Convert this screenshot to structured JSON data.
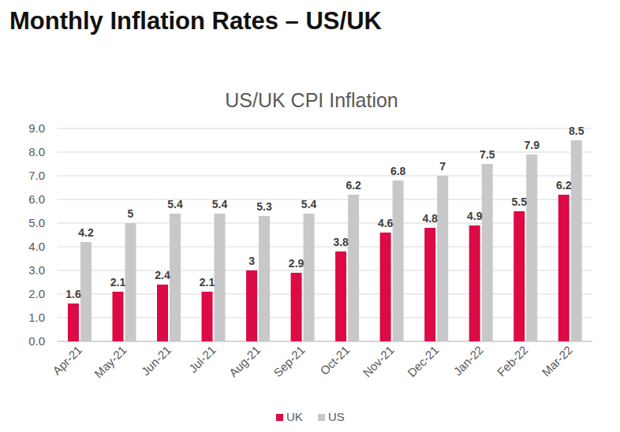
{
  "header": {
    "title": "Monthly Inflation Rates – US/UK"
  },
  "chart_data": {
    "type": "bar",
    "title": "US/UK CPI Inflation",
    "categories": [
      "Apr-21",
      "May-21",
      "Jun-21",
      "Jul-21",
      "Aug-21",
      "Sep-21",
      "Oct-21",
      "Nov-21",
      "Dec-21",
      "Jan-22",
      "Feb-22",
      "Mar-22"
    ],
    "series": [
      {
        "name": "UK",
        "color": "#dc0a45",
        "values": [
          1.6,
          2.1,
          2.4,
          2.1,
          3,
          2.9,
          3.8,
          4.6,
          4.8,
          4.9,
          5.5,
          6.2
        ]
      },
      {
        "name": "US",
        "color": "#c8c8c8",
        "values": [
          4.2,
          5,
          5.4,
          5.4,
          5.3,
          5.4,
          6.2,
          6.8,
          7,
          7.5,
          7.9,
          8.5
        ]
      }
    ],
    "ylim": [
      0,
      9
    ],
    "yticks": [
      {
        "value": 0,
        "label": "0.0"
      },
      {
        "value": 1,
        "label": "1.0"
      },
      {
        "value": 2,
        "label": "2.0"
      },
      {
        "value": 3,
        "label": "3.0"
      },
      {
        "value": 4,
        "label": "4.0"
      },
      {
        "value": 5,
        "label": "5.0"
      },
      {
        "value": 6,
        "label": "6.0"
      },
      {
        "value": 7,
        "label": "7.0"
      },
      {
        "value": 8,
        "label": "8.0"
      },
      {
        "value": 9,
        "label": "9.0"
      }
    ],
    "grid": true,
    "data_labels": true,
    "legend": "bottom"
  }
}
